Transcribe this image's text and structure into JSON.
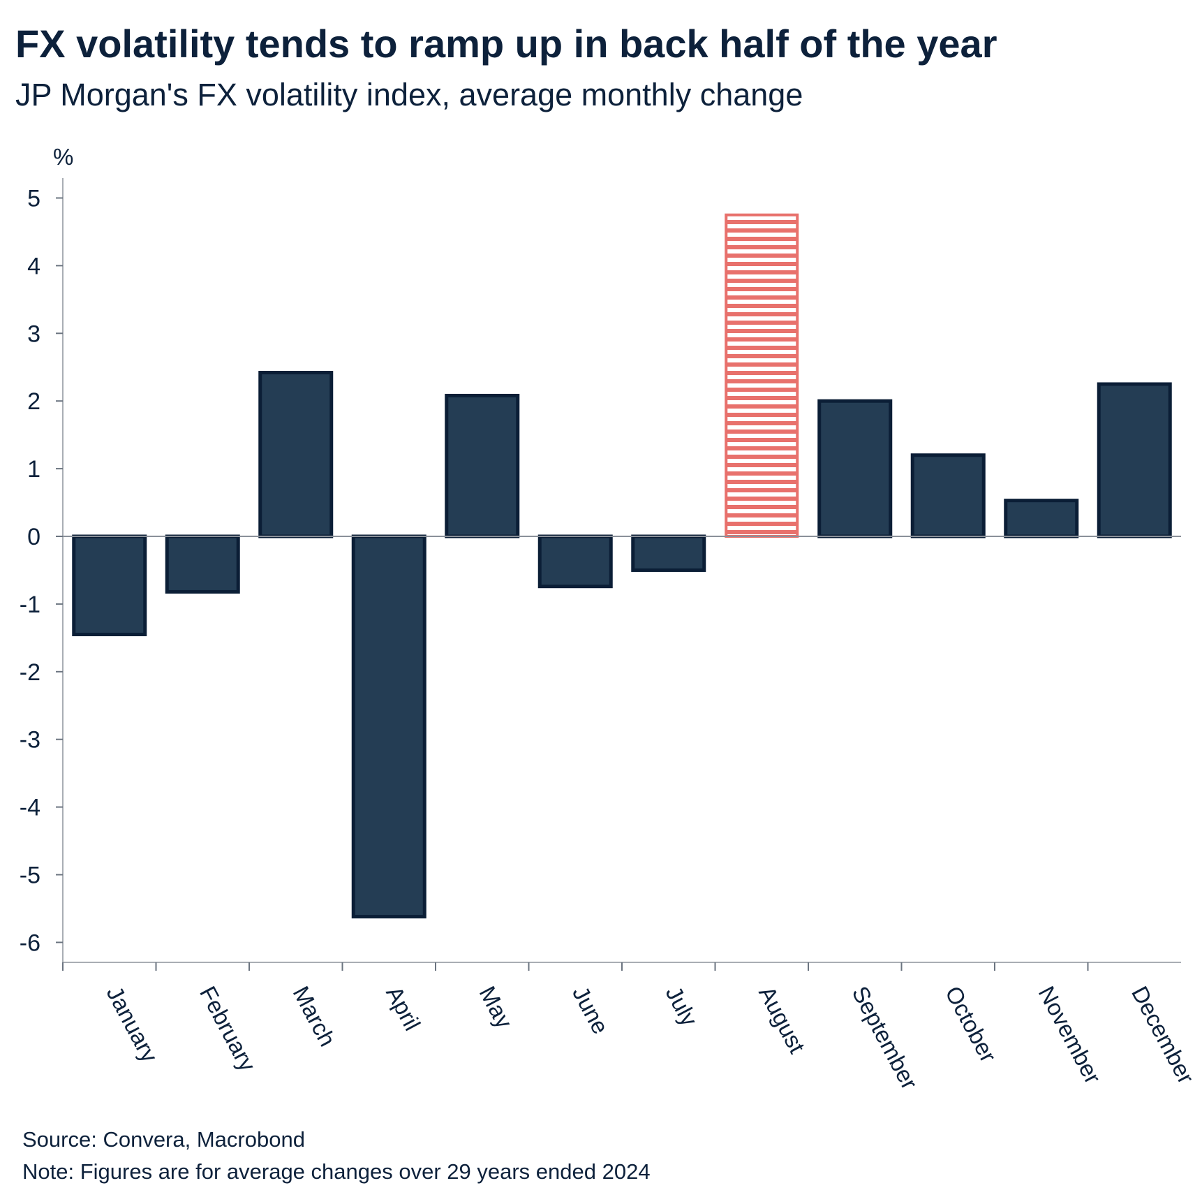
{
  "header": {
    "title": "FX volatility tends to ramp up in back half of the year",
    "subtitle": "JP Morgan's FX volatility index, average monthly change"
  },
  "footer": {
    "source": "Source: Convera, Macrobond",
    "note": "Note: Figures are for average changes over 29 years ended 2024"
  },
  "colors": {
    "bar_fill": "#243d54",
    "bar_stroke": "#0b1e36",
    "highlight": "#e8716c",
    "text": "#0d213b",
    "axis": "#a9aeb4"
  },
  "chart_data": {
    "type": "bar",
    "title": "FX volatility tends to ramp up in back half of the year",
    "subtitle": "JP Morgan's FX volatility index, average monthly change",
    "ylabel": "%",
    "xlabel": "",
    "ylim": [
      -6.25,
      5.3
    ],
    "yticks": [
      5,
      4,
      3,
      2,
      1,
      0,
      -1,
      -2,
      -3,
      -4,
      -5,
      -6
    ],
    "grid": false,
    "legend": "none",
    "categories": [
      "January",
      "February",
      "March",
      "April",
      "May",
      "June",
      "July",
      "August",
      "September",
      "October",
      "November",
      "December"
    ],
    "values": [
      -1.45,
      -0.82,
      2.42,
      -5.62,
      2.08,
      -0.74,
      -0.5,
      4.75,
      2.0,
      1.2,
      0.53,
      2.25
    ],
    "highlight_category": "August"
  }
}
